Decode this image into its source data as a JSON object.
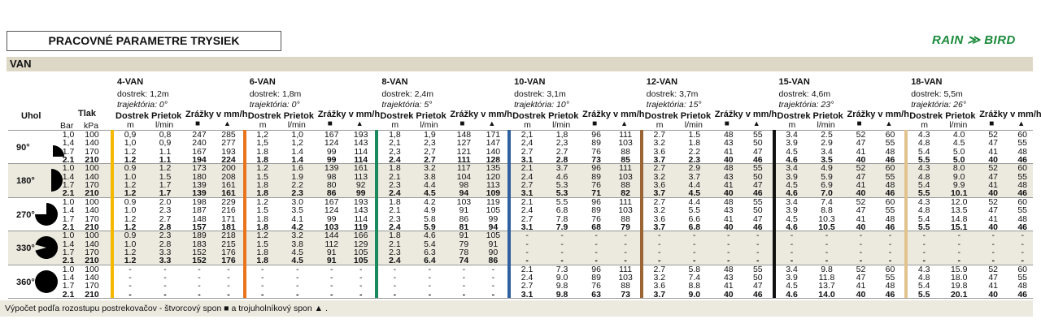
{
  "title": "PRACOVNÉ PARAMETRE TRYSIEK",
  "section": "VAN",
  "logo": {
    "text_left": "RAIN",
    "text_right": "BIRD",
    "color": "#1b8a3b"
  },
  "headers": {
    "angle": "Uhol",
    "pressure": "Tlak",
    "bar": "Bar",
    "kpa": "kPa",
    "range": "Dostrek",
    "range_unit": "m",
    "flow": "Prietok",
    "flow_unit": "l/min",
    "precip": "Zrážky v mm/h",
    "square_icon": "square-spacing-icon",
    "triangle_icon": "triangle-spacing-icon"
  },
  "angles": [
    {
      "label": "90°",
      "icon": "quarter-circle-icon",
      "pressures": [
        [
          "1,0",
          "100"
        ],
        [
          "1,4",
          "140"
        ],
        [
          "1.7",
          "170"
        ],
        [
          "2.1",
          "210"
        ]
      ]
    },
    {
      "label": "180°",
      "icon": "half-circle-icon",
      "pressures": [
        [
          "1.0",
          "100"
        ],
        [
          "1.4",
          "140"
        ],
        [
          "1.7",
          "170"
        ],
        [
          "2.1",
          "210"
        ]
      ]
    },
    {
      "label": "270°",
      "icon": "three-quarter-circle-icon",
      "pressures": [
        [
          "1.0",
          "100"
        ],
        [
          "1.4",
          "140"
        ],
        [
          "1.7",
          "170"
        ],
        [
          "2.1",
          "210"
        ]
      ]
    },
    {
      "label": "330°",
      "icon": "330-degree-circle-icon",
      "pressures": [
        [
          "1.0",
          "100"
        ],
        [
          "1.4",
          "140"
        ],
        [
          "1.7",
          "170"
        ],
        [
          "2.1",
          "210"
        ]
      ]
    },
    {
      "label": "360°",
      "icon": "full-circle-icon",
      "pressures": [
        [
          "1.0",
          "100"
        ],
        [
          "1.4",
          "140"
        ],
        [
          "1.7",
          "170"
        ],
        [
          "2.1",
          "210"
        ]
      ]
    }
  ],
  "nozzles": [
    {
      "name": "4-VAN",
      "range": "dostrek: 1,2m",
      "trajectory": "trajektória: 0°",
      "color": "#f5b800",
      "data": [
        [
          [
            "0,9",
            "0,8",
            "247",
            "285"
          ],
          [
            "1,0",
            "0,9",
            "240",
            "277"
          ],
          [
            "1.2",
            "1.1",
            "167",
            "193"
          ],
          [
            "1.2",
            "1.1",
            "194",
            "224"
          ]
        ],
        [
          [
            "0.9",
            "1.2",
            "173",
            "200"
          ],
          [
            "1.0",
            "1.5",
            "180",
            "208"
          ],
          [
            "1.2",
            "1.7",
            "139",
            "161"
          ],
          [
            "1.2",
            "1.7",
            "139",
            "161"
          ]
        ],
        [
          [
            "0.9",
            "2.0",
            "198",
            "229"
          ],
          [
            "1.0",
            "2.3",
            "187",
            "216"
          ],
          [
            "1.2",
            "2.7",
            "148",
            "171"
          ],
          [
            "1.2",
            "2.8",
            "157",
            "181"
          ]
        ],
        [
          [
            "0.9",
            "2.3",
            "189",
            "218"
          ],
          [
            "1.0",
            "2.8",
            "183",
            "215"
          ],
          [
            "1.2",
            "3.3",
            "152",
            "176"
          ],
          [
            "1.2",
            "3.3",
            "152",
            "176"
          ]
        ],
        [
          [
            "-",
            "-",
            "-",
            "-"
          ],
          [
            "-",
            "-",
            "-",
            "-"
          ],
          [
            "-",
            "-",
            "-",
            "-"
          ],
          [
            "-",
            "-",
            "-",
            "-"
          ]
        ]
      ]
    },
    {
      "name": "6-VAN",
      "range": "dostrek: 1,8m",
      "trajectory": "trajektória: 0°",
      "color": "#e8741e",
      "data": [
        [
          [
            "1,2",
            "1,0",
            "167",
            "193"
          ],
          [
            "1,5",
            "1,2",
            "124",
            "143"
          ],
          [
            "1.8",
            "1.4",
            "99",
            "114"
          ],
          [
            "1.8",
            "1.4",
            "99",
            "114"
          ]
        ],
        [
          [
            "1.2",
            "1.6",
            "139",
            "161"
          ],
          [
            "1.5",
            "1.9",
            "98",
            "113"
          ],
          [
            "1.8",
            "2.2",
            "80",
            "92"
          ],
          [
            "1.8",
            "2.3",
            "86",
            "99"
          ]
        ],
        [
          [
            "1.2",
            "3.0",
            "167",
            "193"
          ],
          [
            "1.5",
            "3.5",
            "124",
            "143"
          ],
          [
            "1.8",
            "4.1",
            "99",
            "114"
          ],
          [
            "1.8",
            "4.2",
            "103",
            "119"
          ]
        ],
        [
          [
            "1.2",
            "3.2",
            "144",
            "166"
          ],
          [
            "1.5",
            "3.8",
            "112",
            "129"
          ],
          [
            "1.8",
            "4.5",
            "91",
            "105"
          ],
          [
            "1.8",
            "4.5",
            "91",
            "105"
          ]
        ],
        [
          [
            "-",
            "-",
            "-",
            "-"
          ],
          [
            "-",
            "-",
            "-",
            "-"
          ],
          [
            "-",
            "-",
            "-",
            "-"
          ],
          [
            "-",
            "-",
            "-",
            "-"
          ]
        ]
      ]
    },
    {
      "name": "8-VAN",
      "range": "dostrek: 2,4m",
      "trajectory": "trajektória: 5°",
      "color": "#1a8a5e",
      "data": [
        [
          [
            "1,8",
            "1,9",
            "148",
            "171"
          ],
          [
            "2,1",
            "2,3",
            "127",
            "147"
          ],
          [
            "2,3",
            "2,7",
            "121",
            "140"
          ],
          [
            "2.4",
            "2.7",
            "111",
            "128"
          ]
        ],
        [
          [
            "1.8",
            "3.2",
            "117",
            "135"
          ],
          [
            "2.1",
            "3.8",
            "104",
            "120"
          ],
          [
            "2.3",
            "4.4",
            "98",
            "113"
          ],
          [
            "2.4",
            "4.5",
            "94",
            "109"
          ]
        ],
        [
          [
            "1.8",
            "4.2",
            "103",
            "119"
          ],
          [
            "2.1",
            "4.9",
            "91",
            "105"
          ],
          [
            "2.3",
            "5.8",
            "86",
            "99"
          ],
          [
            "2.4",
            "5.9",
            "81",
            "94"
          ]
        ],
        [
          [
            "1.8",
            "4.6",
            "91",
            "105"
          ],
          [
            "2.1",
            "5.4",
            "79",
            "91"
          ],
          [
            "2.3",
            "6.3",
            "78",
            "90"
          ],
          [
            "2.4",
            "6.4",
            "74",
            "86"
          ]
        ],
        [
          [
            "-",
            "-",
            "-",
            "-"
          ],
          [
            "-",
            "-",
            "-",
            "-"
          ],
          [
            "-",
            "-",
            "-",
            "-"
          ],
          [
            "-",
            "-",
            "-",
            "-"
          ]
        ]
      ]
    },
    {
      "name": "10-VAN",
      "range": "dostrek: 3,1m",
      "trajectory": "trajektória: 10°",
      "color": "#2f5f9e",
      "data": [
        [
          [
            "2,1",
            "1,8",
            "96",
            "111"
          ],
          [
            "2,4",
            "2,3",
            "89",
            "103"
          ],
          [
            "2.7",
            "2.7",
            "76",
            "88"
          ],
          [
            "3.1",
            "2.8",
            "73",
            "85"
          ]
        ],
        [
          [
            "2.1",
            "3.7",
            "96",
            "111"
          ],
          [
            "2.4",
            "4.6",
            "89",
            "103"
          ],
          [
            "2.7",
            "5.3",
            "76",
            "88"
          ],
          [
            "3.1",
            "5.3",
            "71",
            "82"
          ]
        ],
        [
          [
            "2.1",
            "5.5",
            "96",
            "111"
          ],
          [
            "2.4",
            "6.8",
            "89",
            "103"
          ],
          [
            "2.7",
            "7.8",
            "76",
            "88"
          ],
          [
            "3.1",
            "7.9",
            "68",
            "79"
          ]
        ],
        [
          [
            "-",
            "-",
            "-",
            "-"
          ],
          [
            "-",
            "-",
            "-",
            "-"
          ],
          [
            "-",
            "-",
            "-",
            "-"
          ],
          [
            "-",
            "-",
            "-",
            "-"
          ]
        ],
        [
          [
            "2.1",
            "7.3",
            "96",
            "111"
          ],
          [
            "2.4",
            "9.0",
            "89",
            "103"
          ],
          [
            "2.7",
            "9.8",
            "76",
            "88"
          ],
          [
            "3.1",
            "9.8",
            "63",
            "73"
          ]
        ]
      ]
    },
    {
      "name": "12-VAN",
      "range": "dostrek: 3,7m",
      "trajectory": "trajektória: 15°",
      "color": "#9a6434",
      "data": [
        [
          [
            "2.7",
            "1.5",
            "48",
            "55"
          ],
          [
            "3.2",
            "1.8",
            "43",
            "50"
          ],
          [
            "3.6",
            "2.2",
            "41",
            "47"
          ],
          [
            "3.7",
            "2.3",
            "40",
            "46"
          ]
        ],
        [
          [
            "2.7",
            "2.9",
            "48",
            "55"
          ],
          [
            "3.2",
            "3.7",
            "43",
            "50"
          ],
          [
            "3.6",
            "4.4",
            "41",
            "47"
          ],
          [
            "3.7",
            "4.5",
            "40",
            "46"
          ]
        ],
        [
          [
            "2.7",
            "4.4",
            "48",
            "55"
          ],
          [
            "3.2",
            "5.5",
            "43",
            "50"
          ],
          [
            "3.6",
            "6.6",
            "41",
            "47"
          ],
          [
            "3.7",
            "6.8",
            "40",
            "46"
          ]
        ],
        [
          [
            "-",
            "-",
            "-",
            "-"
          ],
          [
            "-",
            "-",
            "-",
            "-"
          ],
          [
            "-",
            "-",
            "-",
            "-"
          ],
          [
            "-",
            "-",
            "-",
            "-"
          ]
        ],
        [
          [
            "2.7",
            "5.8",
            "48",
            "55"
          ],
          [
            "3.2",
            "7.4",
            "43",
            "50"
          ],
          [
            "3.6",
            "8.8",
            "41",
            "47"
          ],
          [
            "3.7",
            "9.0",
            "40",
            "46"
          ]
        ]
      ]
    },
    {
      "name": "15-VAN",
      "range": "dostrek: 4,6m",
      "trajectory": "trajektória: 23°",
      "color": "#111111",
      "data": [
        [
          [
            "3.4",
            "2.5",
            "52",
            "60"
          ],
          [
            "3.9",
            "2.9",
            "47",
            "55"
          ],
          [
            "4.5",
            "3.4",
            "41",
            "48"
          ],
          [
            "4.6",
            "3.5",
            "40",
            "46"
          ]
        ],
        [
          [
            "3.4",
            "4.9",
            "52",
            "60"
          ],
          [
            "3.9",
            "5.9",
            "47",
            "55"
          ],
          [
            "4.5",
            "6.9",
            "41",
            "48"
          ],
          [
            "4.6",
            "7.0",
            "40",
            "46"
          ]
        ],
        [
          [
            "3.4",
            "7.4",
            "52",
            "60"
          ],
          [
            "3.9",
            "8.8",
            "47",
            "55"
          ],
          [
            "4.5",
            "10.3",
            "41",
            "48"
          ],
          [
            "4.6",
            "10.5",
            "40",
            "46"
          ]
        ],
        [
          [
            "-",
            "-",
            "-",
            "-"
          ],
          [
            "-",
            "-",
            "-",
            "-"
          ],
          [
            "-",
            "-",
            "-",
            "-"
          ],
          [
            "-",
            "-",
            "-",
            "-"
          ]
        ],
        [
          [
            "3.4",
            "9.8",
            "52",
            "60"
          ],
          [
            "3.9",
            "11.8",
            "47",
            "55"
          ],
          [
            "4.5",
            "13.7",
            "41",
            "48"
          ],
          [
            "4.6",
            "14.0",
            "40",
            "46"
          ]
        ]
      ]
    },
    {
      "name": "18-VAN",
      "range": "dostrek: 5,5m",
      "trajectory": "trajektória: 26°",
      "color": "#e2c38e",
      "data": [
        [
          [
            "4.3",
            "4.0",
            "52",
            "60"
          ],
          [
            "4.8",
            "4.5",
            "47",
            "55"
          ],
          [
            "5.4",
            "5.0",
            "41",
            "48"
          ],
          [
            "5.5",
            "5.0",
            "40",
            "46"
          ]
        ],
        [
          [
            "4.3",
            "8.0",
            "52",
            "60"
          ],
          [
            "4.8",
            "9.0",
            "47",
            "55"
          ],
          [
            "5.4",
            "9.9",
            "41",
            "48"
          ],
          [
            "5.5",
            "10.1",
            "40",
            "46"
          ]
        ],
        [
          [
            "4.3",
            "12.0",
            "52",
            "60"
          ],
          [
            "4.8",
            "13.5",
            "47",
            "55"
          ],
          [
            "5.4",
            "14.8",
            "41",
            "48"
          ],
          [
            "5.5",
            "15.1",
            "40",
            "46"
          ]
        ],
        [
          [
            "-",
            "-",
            "-",
            "-"
          ],
          [
            "-",
            "-",
            "-",
            "-"
          ],
          [
            "-",
            "-",
            "-",
            "-"
          ],
          [
            "-",
            "-",
            "-",
            "-"
          ]
        ],
        [
          [
            "4.3",
            "15.9",
            "52",
            "60"
          ],
          [
            "4.8",
            "18.0",
            "47",
            "55"
          ],
          [
            "5.4",
            "19.8",
            "41",
            "48"
          ],
          [
            "5.5",
            "20.1",
            "40",
            "46"
          ]
        ]
      ]
    }
  ],
  "footer": {
    "text_before": "Výpočet podľa rozostupu postrekovačov - štvorcový spon",
    "text_middle": "a trojuholníkový spon",
    "text_end": "."
  }
}
